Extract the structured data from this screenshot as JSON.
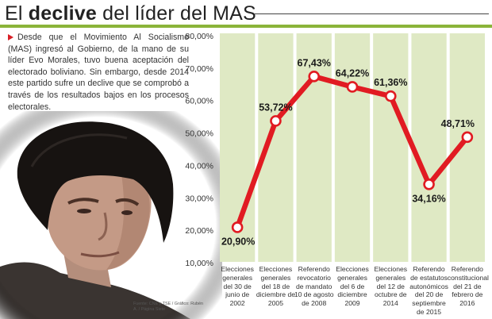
{
  "header": {
    "title_prefix": "El ",
    "title_bold": "declive",
    "title_suffix": " del líder del MAS"
  },
  "intro_text": "Desde que el Movimiento Al Socialismo (MAS) ingresó al Gobierno, de la mano de su líder Evo Morales, tuvo buena aceptación del electorado boliviano. Sin embargo, desde 2014 este partido sufre un declive que se comprobó a través de los resultados bajos en los procesos electorales.",
  "source": "Fuente: CNE y TSE / Gráfico: Rubén A. / Página Siete",
  "colors": {
    "accent_bar": "#8bb43a",
    "panel": "#dfe9c4",
    "line": "#e11b22",
    "bullet": "#d91f26"
  },
  "chart_data": {
    "type": "line",
    "title": "",
    "xlabel": "",
    "ylabel": "",
    "ylim": [
      10,
      80
    ],
    "grid": false,
    "y_ticks": [
      "80,00%",
      "70,00%",
      "60,00%",
      "50,00%",
      "40,00%",
      "30,00%",
      "20,00%",
      "10,00%"
    ],
    "categories": [
      "Elecciones generales del 30 de junio de 2002",
      "Elecciones generales del 18 de diciembre de 2005",
      "Referendo revocatorio de mandato 10 de agosto de 2008",
      "Elecciones generales del 6 de diciembre 2009",
      "Elecciones generales del 12 de octubre de 2014",
      "Referendo de estatutos autonómicos del 20 de septiembre de 2015",
      "Referendo constitucional del 21 de febrero de 2016"
    ],
    "values": [
      20.9,
      53.72,
      67.43,
      64.22,
      61.36,
      34.16,
      48.71
    ],
    "value_labels": [
      "20,90%",
      "53,72%",
      "67,43%",
      "64,22%",
      "61,36%",
      "34,16%",
      "48,71%"
    ]
  }
}
